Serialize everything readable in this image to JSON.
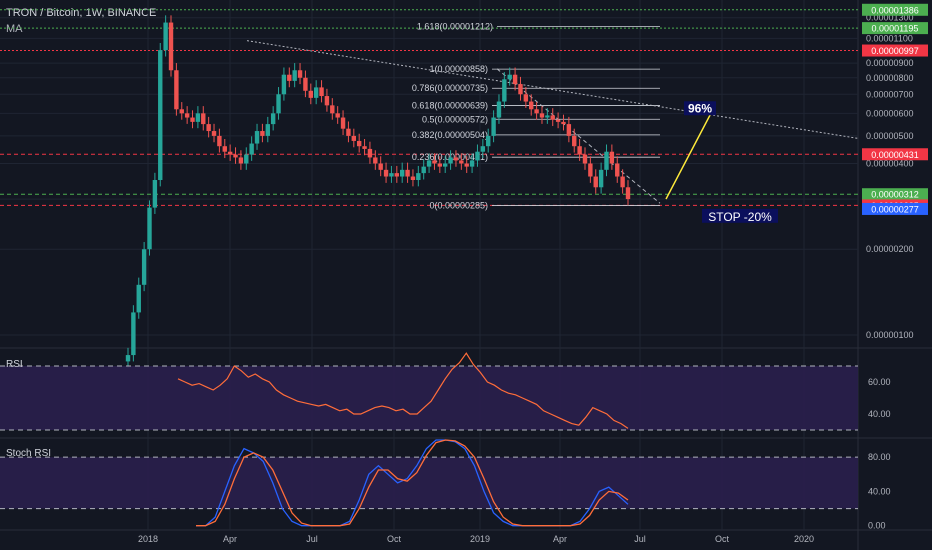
{
  "header": {
    "symbol_line": "TRON / Bitcoin, 1W, BINANCE",
    "indicator": "MA"
  },
  "colors": {
    "background": "#131722",
    "grid": "#1f2533",
    "up": "#26a69a",
    "down": "#ef5350",
    "resistance_green": "#4caf50",
    "resistance_red": "#f23645",
    "stop_blue": "#2962ff",
    "rsi_line": "#ff6d3a",
    "stoch_k": "#2962ff",
    "stoch_d": "#ff6d3a",
    "indicator_bg": "#2a1f4d",
    "arrow": "#ffeb3b"
  },
  "chart_data": [
    {
      "type": "candlestick",
      "title": "TRON / Bitcoin, 1W, BINANCE",
      "xlabel": "",
      "ylabel": "",
      "ylim": [
        6e-07,
        1.4e-06
      ],
      "log_scale": true,
      "x_ticks": [
        "2018",
        "Apr",
        "Jul",
        "Oct",
        "2019",
        "Apr",
        "Jul",
        "Oct",
        "2020"
      ],
      "y_ticks": [
        "0.00001300",
        "0.00001100",
        "0.00000900",
        "0.00000800",
        "0.00000700",
        "0.00000600",
        "0.00000500",
        "0.00000400",
        "0.00000300",
        "0.00000200",
        "0.00000100"
      ],
      "close_series_approx": [
        8.5e-07,
        1.2e-06,
        1.5e-06,
        2e-06,
        2.8e-06,
        3.5e-06,
        1e-05,
        1.25e-05,
        8.5e-06,
        6.2e-06,
        6e-06,
        5.8e-06,
        5.6e-06,
        6e-06,
        5.5e-06,
        5.2e-06,
        5e-06,
        4.6e-06,
        4.4e-06,
        4.3e-06,
        4.2e-06,
        4e-06,
        4.3e-06,
        4.7e-06,
        5.2e-06,
        5e-06,
        5.5e-06,
        6e-06,
        7e-06,
        8.2e-06,
        7.8e-06,
        8.5e-06,
        8e-06,
        7.2e-06,
        6.8e-06,
        7.4e-06,
        6.9e-06,
        6.4e-06,
        6e-06,
        5.8e-06,
        5.3e-06,
        5e-06,
        4.8e-06,
        4.6e-06,
        4.5e-06,
        4.2e-06,
        4e-06,
        3.8e-06,
        3.6e-06,
        3.7e-06,
        3.6e-06,
        3.8e-06,
        3.6e-06,
        3.5e-06,
        3.7e-06,
        3.9e-06,
        4.1e-06,
        4e-06,
        3.9e-06,
        4e-06,
        4.2e-06,
        4.1e-06,
        4e-06,
        3.9e-06,
        4.1e-06,
        4.4e-06,
        4.6e-06,
        5e-06,
        5.8e-06,
        6.6e-06,
        7.9e-06,
        8.2e-06,
        7.6e-06,
        7e-06,
        6.6e-06,
        6.2e-06,
        6e-06,
        5.8e-06,
        5.9e-06,
        5.7e-06,
        5.6e-06,
        5.5e-06,
        5e-06,
        4.6e-06,
        4.3e-06,
        4e-06,
        3.6e-06,
        3.3e-06,
        3.8e-06,
        4.4e-06,
        4e-06,
        3.6e-06,
        3.3e-06,
        3e-06
      ],
      "levels": [
        {
          "label": "0.00001386",
          "style": "green"
        },
        {
          "label": "0.00001195",
          "style": "green"
        },
        {
          "label": "0.00000997",
          "style": "red"
        },
        {
          "label": "0.00000431",
          "style": "red"
        },
        {
          "label": "0.00000312",
          "style": "green"
        },
        {
          "label": "0.00000285",
          "style": "red"
        },
        {
          "label": "0.00000277",
          "style": "blue"
        }
      ],
      "fibonacci": [
        {
          "ratio": "1.618",
          "text": "1.618(0.00001212)"
        },
        {
          "ratio": "1",
          "text": "1(0.00000858)"
        },
        {
          "ratio": "0.786",
          "text": "0.786(0.00000735)"
        },
        {
          "ratio": "0.618",
          "text": "0.618(0.00000639)"
        },
        {
          "ratio": "0.5",
          "text": "0.5(0.00000572)"
        },
        {
          "ratio": "0.382",
          "text": "0.382(0.00000504)"
        },
        {
          "ratio": "0.236",
          "text": "0.236(0.00000421)"
        },
        {
          "ratio": "0",
          "text": "0(0.00000285)"
        }
      ],
      "annotations": [
        "96%",
        "STOP -20%"
      ]
    },
    {
      "type": "line",
      "title": "RSI",
      "y_ticks": [
        "60.00",
        "40.00"
      ],
      "ylim": [
        25,
        80
      ],
      "bands": [
        70,
        30
      ],
      "values": [
        62,
        60,
        58,
        59,
        57,
        55,
        58,
        62,
        70,
        67,
        63,
        65,
        62,
        60,
        55,
        52,
        50,
        48,
        47,
        46,
        45,
        46,
        44,
        42,
        43,
        40,
        40,
        42,
        44,
        45,
        44,
        42,
        43,
        40,
        40,
        44,
        48,
        55,
        62,
        68,
        72,
        78,
        71,
        66,
        60,
        58,
        55,
        53,
        52,
        50,
        48,
        46,
        42,
        40,
        38,
        36,
        34,
        33,
        38,
        44,
        42,
        40,
        36,
        34,
        31
      ]
    },
    {
      "type": "line",
      "title": "Stoch RSI",
      "y_ticks": [
        "80.00",
        "40.00",
        "0.00"
      ],
      "ylim": [
        -5,
        100
      ],
      "bands": [
        80,
        20
      ],
      "series": [
        {
          "values": [
            0,
            0,
            10,
            40,
            70,
            90,
            85,
            75,
            50,
            20,
            5,
            0,
            0,
            0,
            0,
            0,
            5,
            30,
            60,
            70,
            60,
            50,
            55,
            70,
            90,
            100,
            100,
            98,
            90,
            70,
            40,
            15,
            5,
            0,
            0,
            0,
            0,
            0,
            0,
            0,
            5,
            20,
            40,
            45,
            35,
            25
          ]
        },
        {
          "values": [
            0,
            0,
            5,
            25,
            55,
            80,
            85,
            80,
            65,
            40,
            15,
            3,
            0,
            0,
            0,
            0,
            2,
            20,
            45,
            65,
            65,
            55,
            52,
            62,
            82,
            97,
            100,
            99,
            93,
            80,
            55,
            28,
            10,
            2,
            0,
            0,
            0,
            0,
            0,
            0,
            2,
            12,
            30,
            40,
            38,
            30
          ]
        }
      ]
    }
  ]
}
